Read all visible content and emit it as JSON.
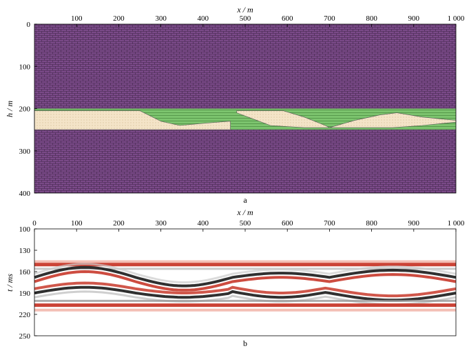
{
  "panels": {
    "a": {
      "label": "a",
      "x_axis": {
        "label": "x / m",
        "ticks": [
          "100",
          "200",
          "300",
          "400",
          "500",
          "600",
          "700",
          "800",
          "900",
          "1 000"
        ],
        "values": [
          100,
          200,
          300,
          400,
          500,
          600,
          700,
          800,
          900,
          1000
        ],
        "range": [
          0,
          1000
        ]
      },
      "y_axis": {
        "label": "h / m",
        "ticks": [
          "0",
          "100",
          "200",
          "300",
          "400"
        ],
        "values": [
          0,
          100,
          200,
          300,
          400
        ],
        "range": [
          0,
          400
        ]
      },
      "layers": {
        "top": {
          "from": 0,
          "to": 200,
          "color": "#7a4a88",
          "pattern": "brick"
        },
        "middle": {
          "from": 200,
          "to": 250,
          "color": "#7cc46e",
          "pattern": "stripes"
        },
        "bottom": {
          "from": 250,
          "to": 400,
          "color": "#7a4a88",
          "pattern": "brick"
        }
      },
      "sand_bodies": [
        {
          "points": [
            [
              0,
              205
            ],
            [
              0,
              245
            ],
            [
              60,
              230
            ],
            [
              120,
              210
            ],
            [
              170,
              220
            ],
            [
              230,
              245
            ],
            [
              240,
              245
            ]
          ],
          "color": "#f4e4c8"
        },
        {
          "points": [
            [
              0,
              205
            ],
            [
              250,
              205
            ],
            [
              300,
              230
            ],
            [
              345,
              240
            ],
            [
              400,
              235
            ],
            [
              460,
              230
            ],
            [
              465,
              230
            ],
            [
              465,
              250
            ],
            [
              0,
              250
            ]
          ],
          "color": "#f4e4c8",
          "type": "lens_a"
        },
        {
          "points": [
            [
              480,
              205
            ],
            [
              590,
              205
            ],
            [
              640,
              220
            ],
            [
              690,
              240
            ],
            [
              700,
              245
            ],
            [
              640,
              245
            ],
            [
              560,
              240
            ],
            [
              520,
              225
            ],
            [
              480,
              210
            ]
          ],
          "color": "#f4e4c8"
        },
        {
          "points": [
            [
              700,
              245
            ],
            [
              760,
              228
            ],
            [
              820,
              215
            ],
            [
              860,
              210
            ],
            [
              920,
              220
            ],
            [
              1000,
              228
            ],
            [
              1000,
              232
            ],
            [
              920,
              240
            ],
            [
              850,
              245
            ],
            [
              780,
              245
            ]
          ],
          "color": "#f4e4c8"
        }
      ]
    },
    "b": {
      "label": "b",
      "x_axis": {
        "label": "x / m",
        "ticks": [
          "0",
          "100",
          "200",
          "300",
          "400",
          "500",
          "600",
          "700",
          "800",
          "900",
          "1 000"
        ],
        "values": [
          0,
          100,
          200,
          300,
          400,
          500,
          600,
          700,
          800,
          900,
          1000
        ],
        "range": [
          0,
          1000
        ]
      },
      "y_axis": {
        "label": "t / ms",
        "ticks": [
          "100",
          "130",
          "160",
          "190",
          "220",
          "250"
        ],
        "values": [
          100,
          130,
          160,
          190,
          220,
          250
        ],
        "range": [
          100,
          250
        ]
      },
      "seismic": {
        "positive_color": "#c8392b",
        "negative_color": "#1a1a1a",
        "events": [
          {
            "name": "top",
            "t": [
              [
                0,
                150
              ],
              [
                1000,
                150
              ]
            ],
            "polarity": "red"
          },
          {
            "name": "base",
            "t": [
              [
                0,
                207
              ],
              [
                1000,
                207
              ]
            ],
            "polarity": "red"
          }
        ]
      }
    }
  }
}
